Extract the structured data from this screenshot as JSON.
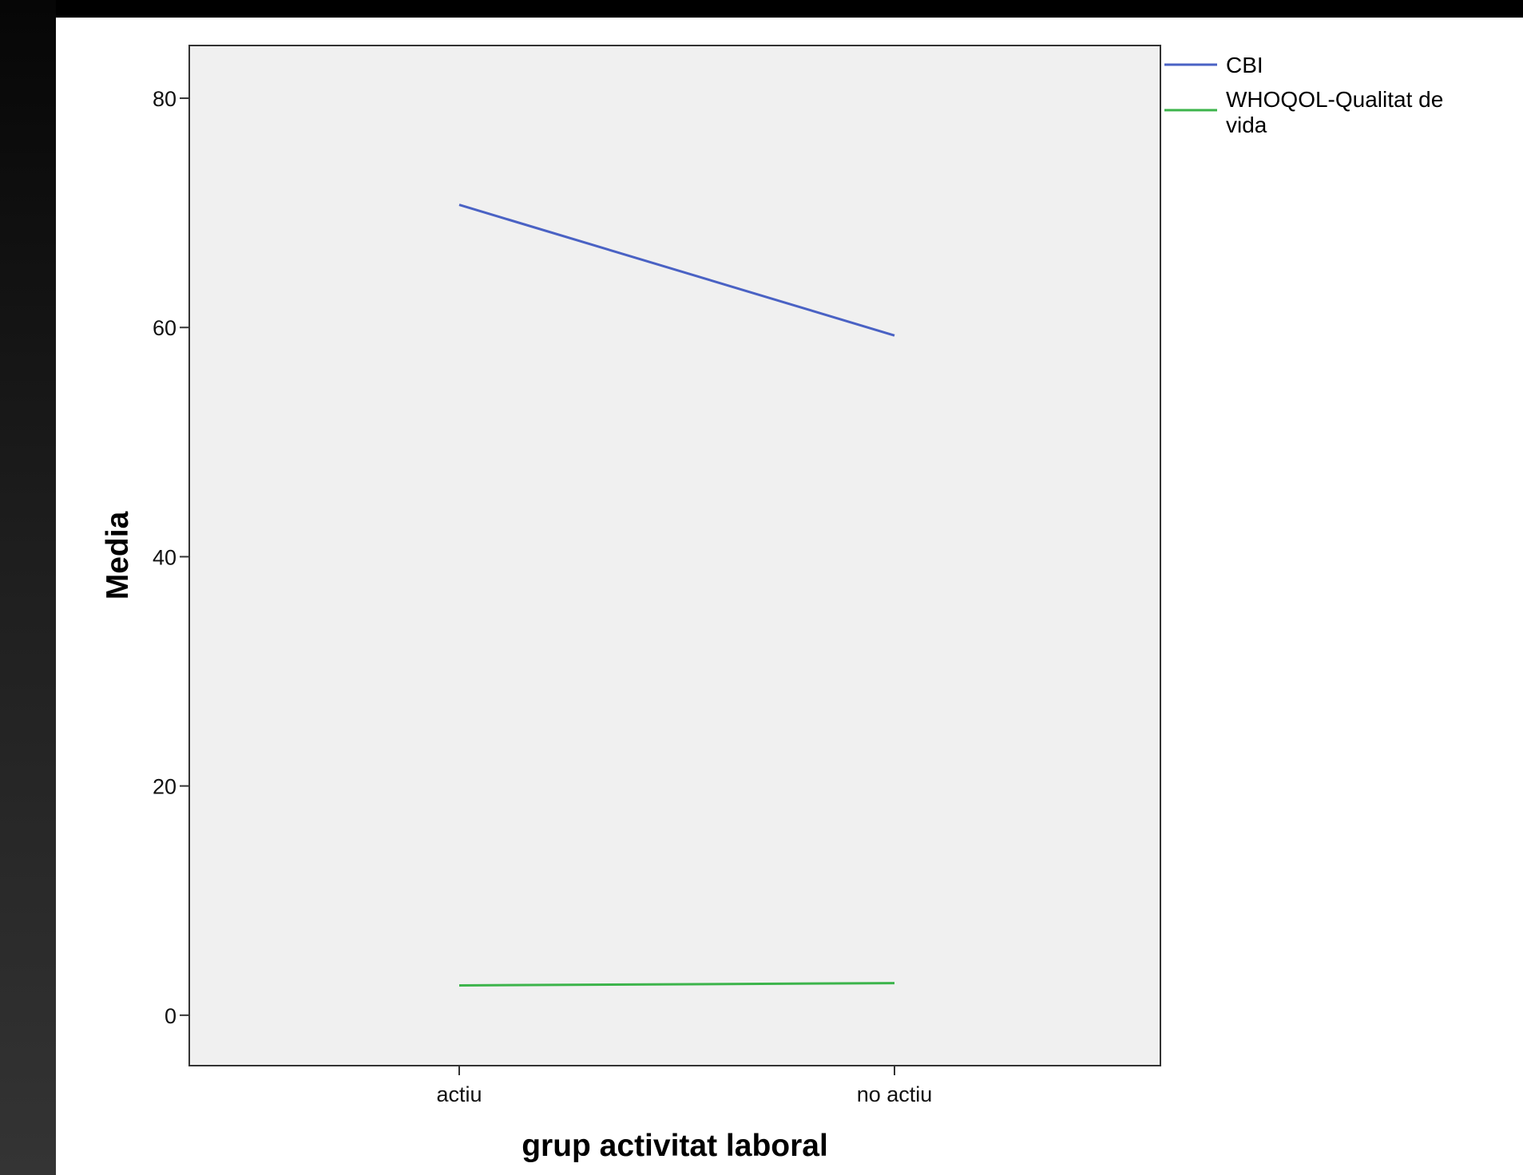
{
  "chart_data": {
    "type": "line",
    "categories": [
      "actiu",
      "no actiu"
    ],
    "xlabel": "grup activitat laboral",
    "ylabel": "Media",
    "ylim": [
      -4.4,
      84.6
    ],
    "yticks": [
      0,
      20,
      40,
      60,
      80
    ],
    "grid": false,
    "legend_position": "right",
    "plot_background": "#f0f0f0",
    "series": [
      {
        "name": "CBI",
        "values": [
          70.7,
          59.3
        ],
        "color": "#4a62c4"
      },
      {
        "name": "WHOQOL-Qualitat de vida",
        "name_lines": [
          "WHOQOL-Qualitat de",
          "vida"
        ],
        "values": [
          2.6,
          2.8
        ],
        "color": "#3cb44b"
      }
    ]
  }
}
